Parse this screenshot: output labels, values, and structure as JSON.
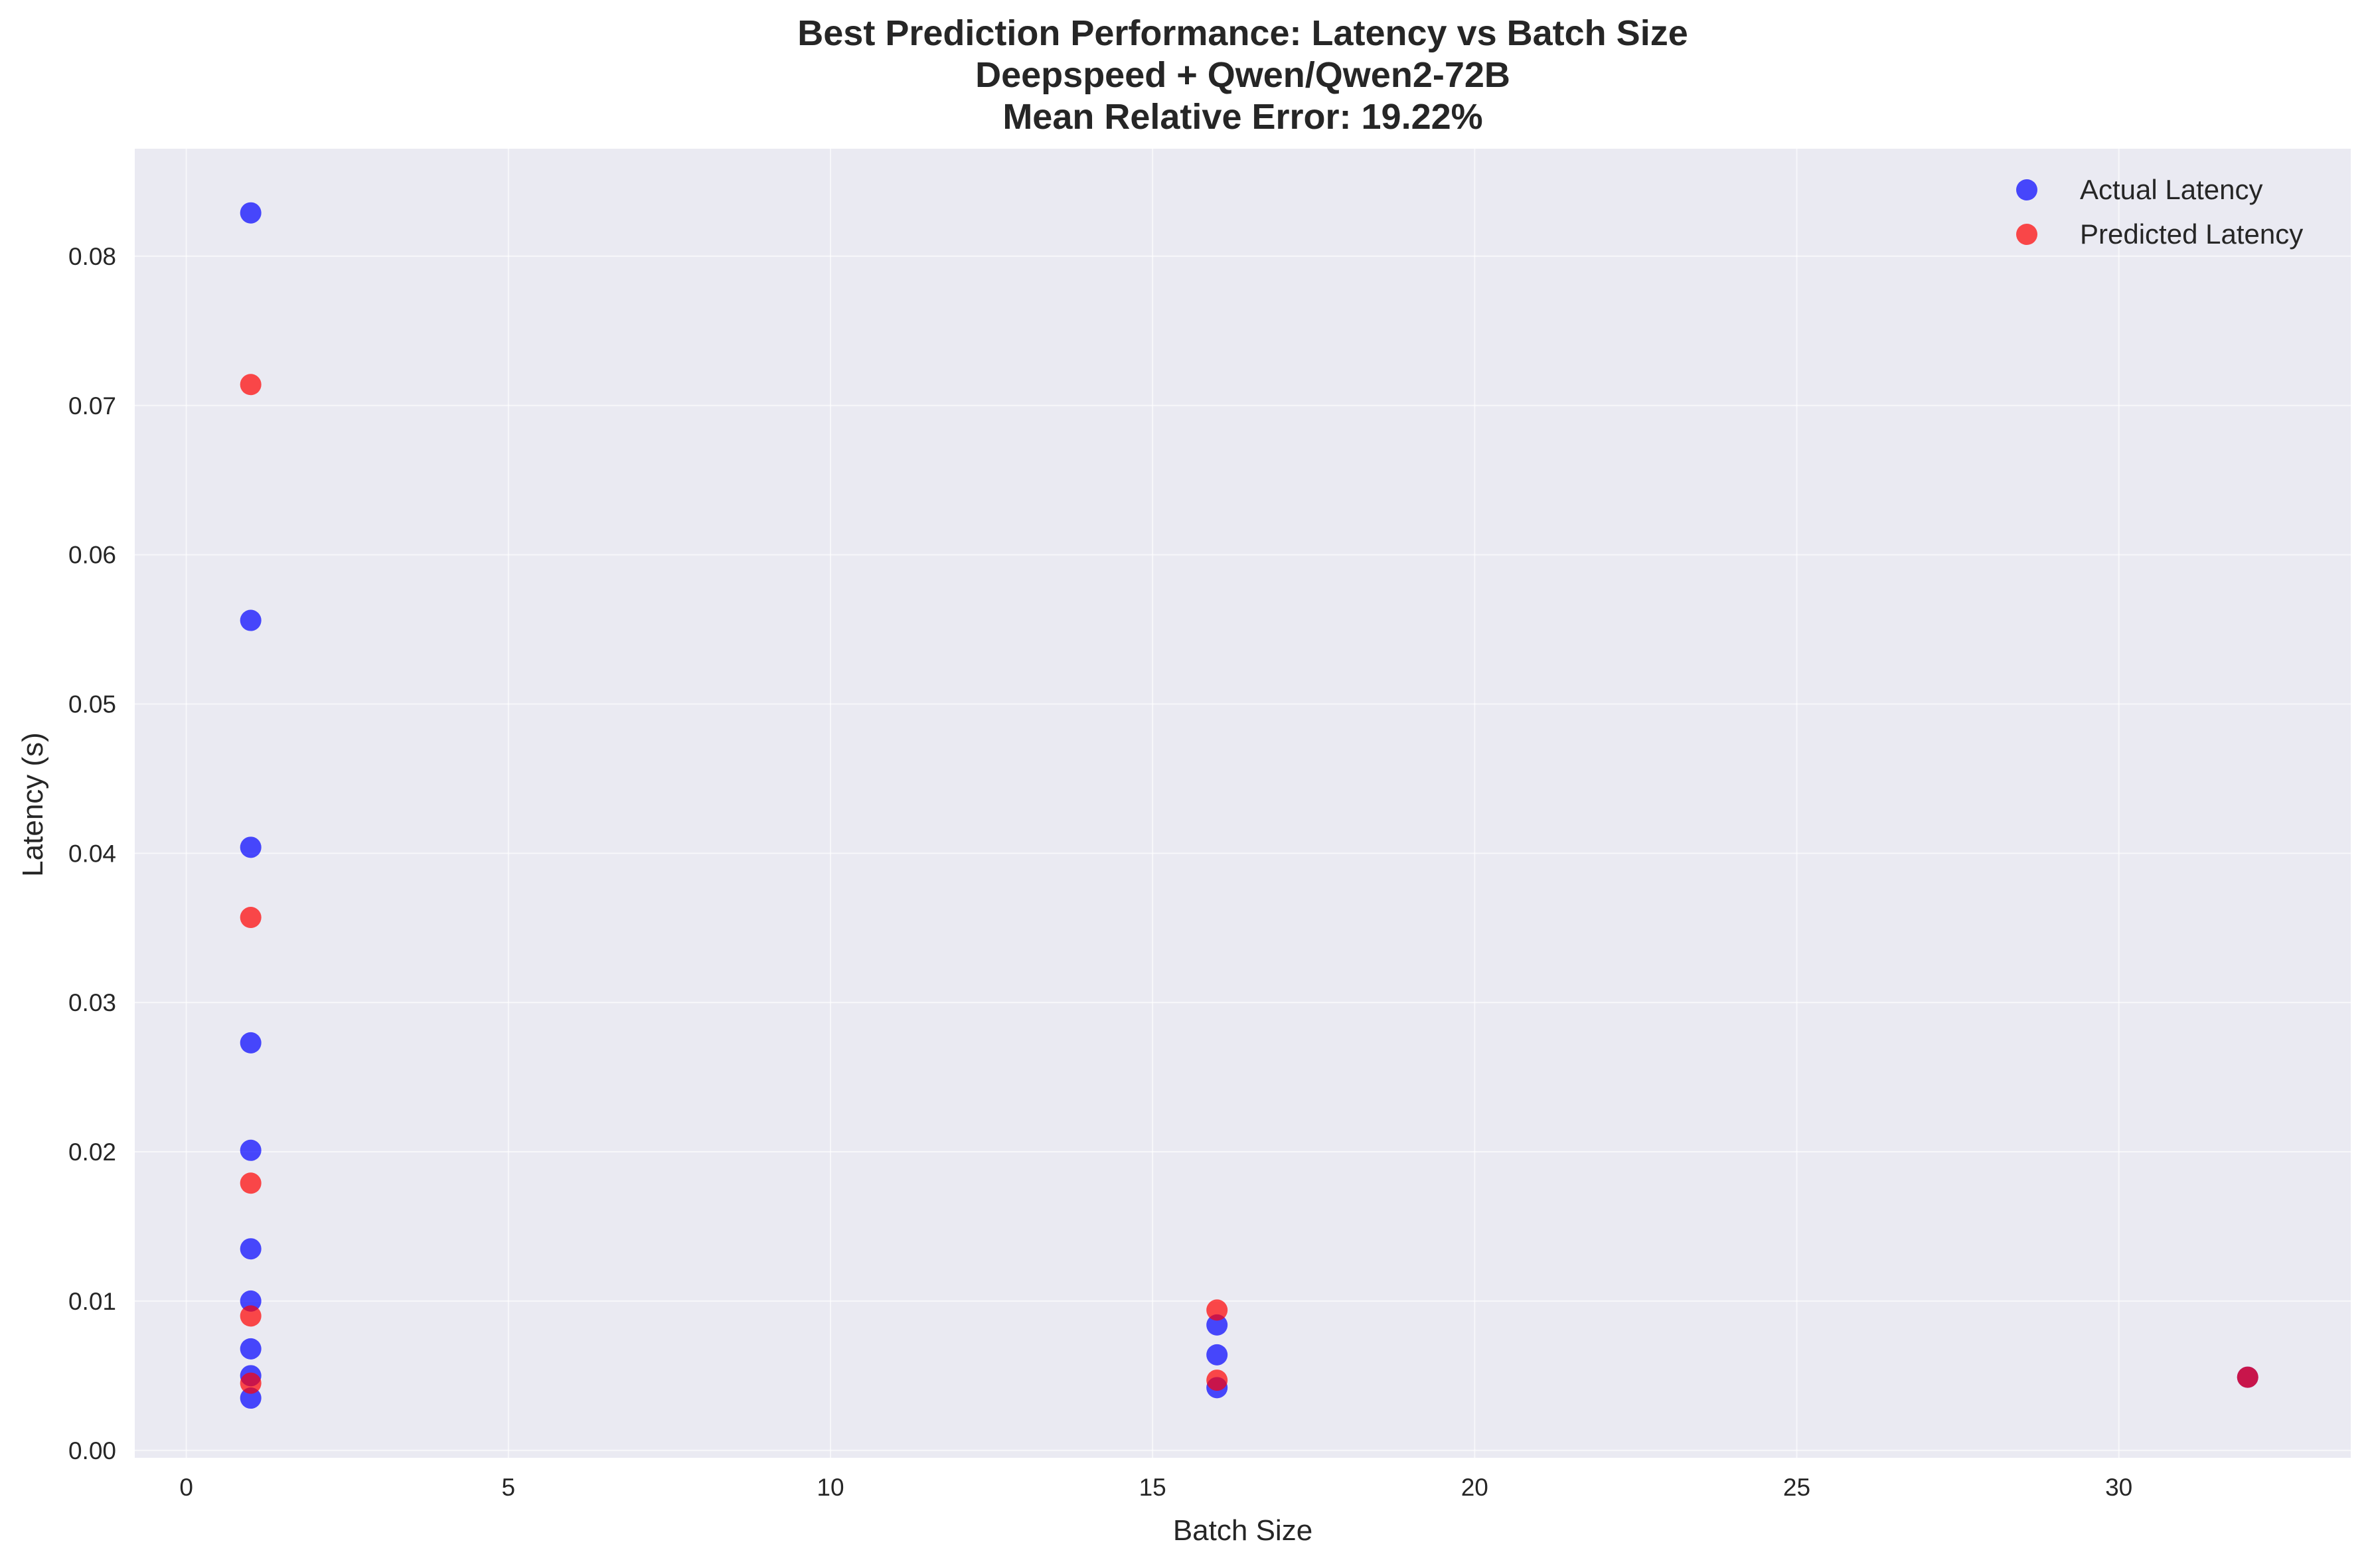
{
  "chart_data": {
    "type": "scatter",
    "title": [
      "Best Prediction Performance: Latency vs Batch Size",
      "Deepspeed + Qwen/Qwen2-72B",
      "Mean Relative Error: 19.22%"
    ],
    "xlabel": "Batch Size",
    "ylabel": "Latency (s)",
    "xlim": [
      -0.8,
      33.6
    ],
    "ylim": [
      -0.0005,
      0.0872
    ],
    "xticks": [
      0,
      5,
      10,
      15,
      20,
      25,
      30
    ],
    "xtick_labels": [
      "0",
      "5",
      "10",
      "15",
      "20",
      "25",
      "30"
    ],
    "yticks": [
      0.0,
      0.01,
      0.02,
      0.03,
      0.04,
      0.05,
      0.06,
      0.07,
      0.08
    ],
    "ytick_labels": [
      "0.00",
      "0.01",
      "0.02",
      "0.03",
      "0.04",
      "0.05",
      "0.06",
      "0.07",
      "0.08"
    ],
    "grid": true,
    "legend_position": "top-right",
    "series": [
      {
        "name": "Actual Latency",
        "color": "#0000ff",
        "alpha": 0.7,
        "points": [
          {
            "x": 1,
            "y": 0.0829
          },
          {
            "x": 1,
            "y": 0.0556
          },
          {
            "x": 1,
            "y": 0.0404
          },
          {
            "x": 1,
            "y": 0.0273
          },
          {
            "x": 1,
            "y": 0.0201
          },
          {
            "x": 1,
            "y": 0.0135
          },
          {
            "x": 1,
            "y": 0.01
          },
          {
            "x": 1,
            "y": 0.0068
          },
          {
            "x": 1,
            "y": 0.005
          },
          {
            "x": 1,
            "y": 0.0035
          },
          {
            "x": 16,
            "y": 0.0084
          },
          {
            "x": 16,
            "y": 0.0064
          },
          {
            "x": 16,
            "y": 0.0042
          },
          {
            "x": 32,
            "y": 0.0049
          }
        ]
      },
      {
        "name": "Predicted Latency",
        "color": "#ff0000",
        "alpha": 0.7,
        "points": [
          {
            "x": 1,
            "y": 0.0714
          },
          {
            "x": 1,
            "y": 0.0357
          },
          {
            "x": 1,
            "y": 0.0179
          },
          {
            "x": 1,
            "y": 0.009
          },
          {
            "x": 1,
            "y": 0.0045
          },
          {
            "x": 16,
            "y": 0.0094
          },
          {
            "x": 16,
            "y": 0.0047
          },
          {
            "x": 32,
            "y": 0.0049
          }
        ]
      }
    ],
    "colors": {
      "plot_background": "#eaeaf2",
      "grid": "#ffffff",
      "text": "#262626"
    }
  }
}
